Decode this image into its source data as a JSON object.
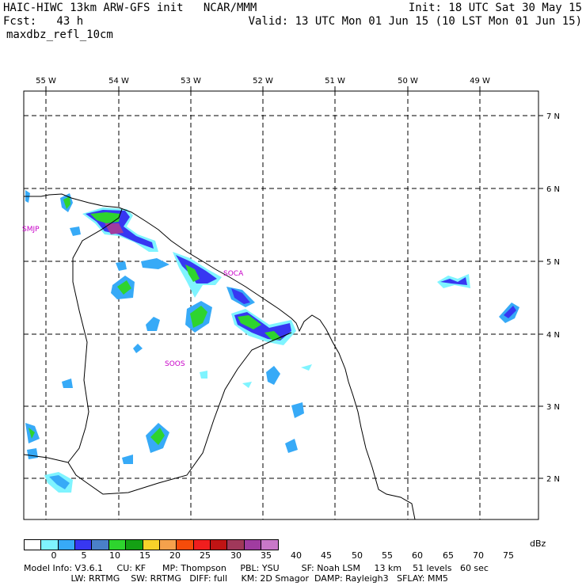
{
  "header": {
    "line1_left": "HAIC-HIWC 13km ARW-GFS init   NCAR/MMM",
    "line1_right": "Init: 18 UTC Sat 30 May 15",
    "line2_left": "Fcst:   43 h",
    "line2_right": "Valid: 13 UTC Mon 01 Jun 15 (10 LST Mon 01 Jun 15)",
    "line3": "maxdbz_refl_10cm"
  },
  "map": {
    "lon_labels": [
      "55 W",
      "54 W",
      "53 W",
      "52 W",
      "51 W",
      "50 W",
      "49 W"
    ],
    "lat_labels": [
      "7 N",
      "6 N",
      "5 N",
      "4 N",
      "3 N",
      "2 N"
    ],
    "stations": [
      "SMJP",
      "SOCA",
      "SOOS"
    ]
  },
  "colorbar": {
    "unit": "dBz",
    "labels": [
      "0",
      "5",
      "10",
      "15",
      "20",
      "25",
      "30",
      "35",
      "40",
      "45",
      "50",
      "55",
      "60",
      "65",
      "70",
      "75"
    ],
    "colors": [
      "#ffffff",
      "#7ff4ff",
      "#37aaf7",
      "#3737f2",
      "#4a80c8",
      "#2ed42e",
      "#14a014",
      "#f7d22a",
      "#f5a14c",
      "#f54c0a",
      "#f01e1e",
      "#c01414",
      "#a0385a",
      "#a03ca0",
      "#c878c8"
    ]
  },
  "footer": {
    "line1": "Model Info: V3.6.1     CU: KF      MP: Thompson     PBL: YSU        SF: Noah LSM     13 km    51 levels   60 sec",
    "line2": "                 LW: RRTMG    SW: RRTMG   DIFF: full     KM: 2D Smagor  DAMP: Rayleigh3   SFLAY: MM5"
  }
}
